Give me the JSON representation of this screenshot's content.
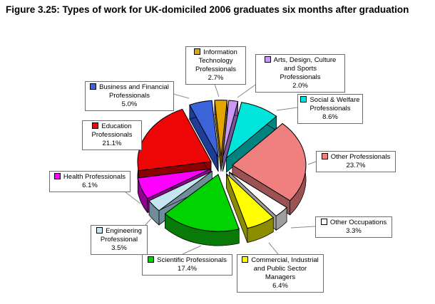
{
  "title": "Figure 3.25: Types of work for UK-domiciled 2006 graduates six months after graduation",
  "chart_data": {
    "type": "pie",
    "style": "3d-exploded",
    "title": "Types of work for UK-domiciled 2006 graduates six months after graduation",
    "unit": "%",
    "legend_position": "callout-boxes-around-pie",
    "start_angle_deg": -5,
    "slices": [
      {
        "label": "Information Technology Professionals",
        "value": 2.7,
        "color": "#E2A500",
        "side_color": "#8A6600",
        "label_lines": [
          "Information",
          "Technology",
          "Professionals"
        ]
      },
      {
        "label": "Arts, Design, Culture and Sports Professionals",
        "value": 2.0,
        "color": "#C998F2",
        "side_color": "#77549B",
        "label_lines": [
          "Arts, Design, Culture",
          "and Sports",
          "Professionals"
        ]
      },
      {
        "label": "Social & Welfare Professionals",
        "value": 8.6,
        "color": "#00E5DB",
        "side_color": "#00837E",
        "label_lines": [
          "Social & Welfare",
          "Professionals"
        ]
      },
      {
        "label": "Other Professionals",
        "value": 23.7,
        "color": "#F08080",
        "side_color": "#9B5252",
        "label_lines": [
          "Other Professionals"
        ]
      },
      {
        "label": "Other Occupations",
        "value": 3.3,
        "color": "#FFFFFF",
        "side_color": "#9E9E9E",
        "label_lines": [
          "Other Occupations"
        ]
      },
      {
        "label": "Commercial, Industrial and Public Sector Managers",
        "value": 6.4,
        "color": "#FFFF00",
        "side_color": "#8C8C00",
        "label_lines": [
          "Commercial, Industrial",
          "and Public Sector",
          "Managers"
        ]
      },
      {
        "label": "Scientific Professionals",
        "value": 17.4,
        "color": "#00D300",
        "side_color": "#077A07",
        "label_lines": [
          "Scientific Professionals"
        ]
      },
      {
        "label": "Engineering Professional",
        "value": 3.5,
        "color": "#C6E6EF",
        "side_color": "#6F8C99",
        "label_lines": [
          "Engineering",
          "Professional"
        ]
      },
      {
        "label": "Health Professionals",
        "value": 6.1,
        "color": "#FF00FF",
        "side_color": "#8F008F",
        "label_lines": [
          "Health Professionals"
        ]
      },
      {
        "label": "Education Professionals",
        "value": 21.1,
        "color": "#EE0505",
        "side_color": "#8B0000",
        "label_lines": [
          "Education",
          "Professionals"
        ]
      },
      {
        "label": "Business and Financial Professionals",
        "value": 5.0,
        "color": "#3D63DB",
        "side_color": "#1F3D96",
        "label_lines": [
          "Business and Financial",
          "Professionals"
        ]
      }
    ]
  }
}
